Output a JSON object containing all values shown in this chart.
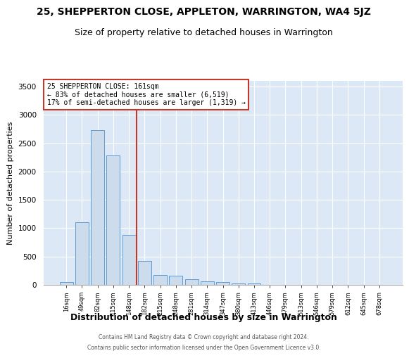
{
  "title1": "25, SHEPPERTON CLOSE, APPLETON, WARRINGTON, WA4 5JZ",
  "title2": "Size of property relative to detached houses in Warrington",
  "xlabel": "Distribution of detached houses by size in Warrington",
  "ylabel": "Number of detached properties",
  "categories": [
    "16sqm",
    "49sqm",
    "82sqm",
    "115sqm",
    "148sqm",
    "182sqm",
    "215sqm",
    "248sqm",
    "281sqm",
    "314sqm",
    "347sqm",
    "380sqm",
    "413sqm",
    "446sqm",
    "479sqm",
    "513sqm",
    "546sqm",
    "579sqm",
    "612sqm",
    "645sqm",
    "678sqm"
  ],
  "values": [
    50,
    1100,
    2730,
    2280,
    880,
    420,
    170,
    165,
    95,
    60,
    50,
    30,
    25,
    5,
    5,
    0,
    0,
    0,
    0,
    0,
    0
  ],
  "bar_color": "#ccdcec",
  "bar_edge_color": "#5b9bd5",
  "vline_x_idx": 4.5,
  "vline_color": "#c0392b",
  "annotation_text": "25 SHEPPERTON CLOSE: 161sqm\n← 83% of detached houses are smaller (6,519)\n17% of semi-detached houses are larger (1,319) →",
  "annotation_box_color": "#c0392b",
  "ylim": [
    0,
    3600
  ],
  "yticks": [
    0,
    500,
    1000,
    1500,
    2000,
    2500,
    3000,
    3500
  ],
  "title1_fontsize": 10,
  "title2_fontsize": 9,
  "xlabel_fontsize": 9,
  "ylabel_fontsize": 8,
  "footer1": "Contains HM Land Registry data © Crown copyright and database right 2024.",
  "footer2": "Contains public sector information licensed under the Open Government Licence v3.0.",
  "plot_bg_color": "#dce8f5"
}
